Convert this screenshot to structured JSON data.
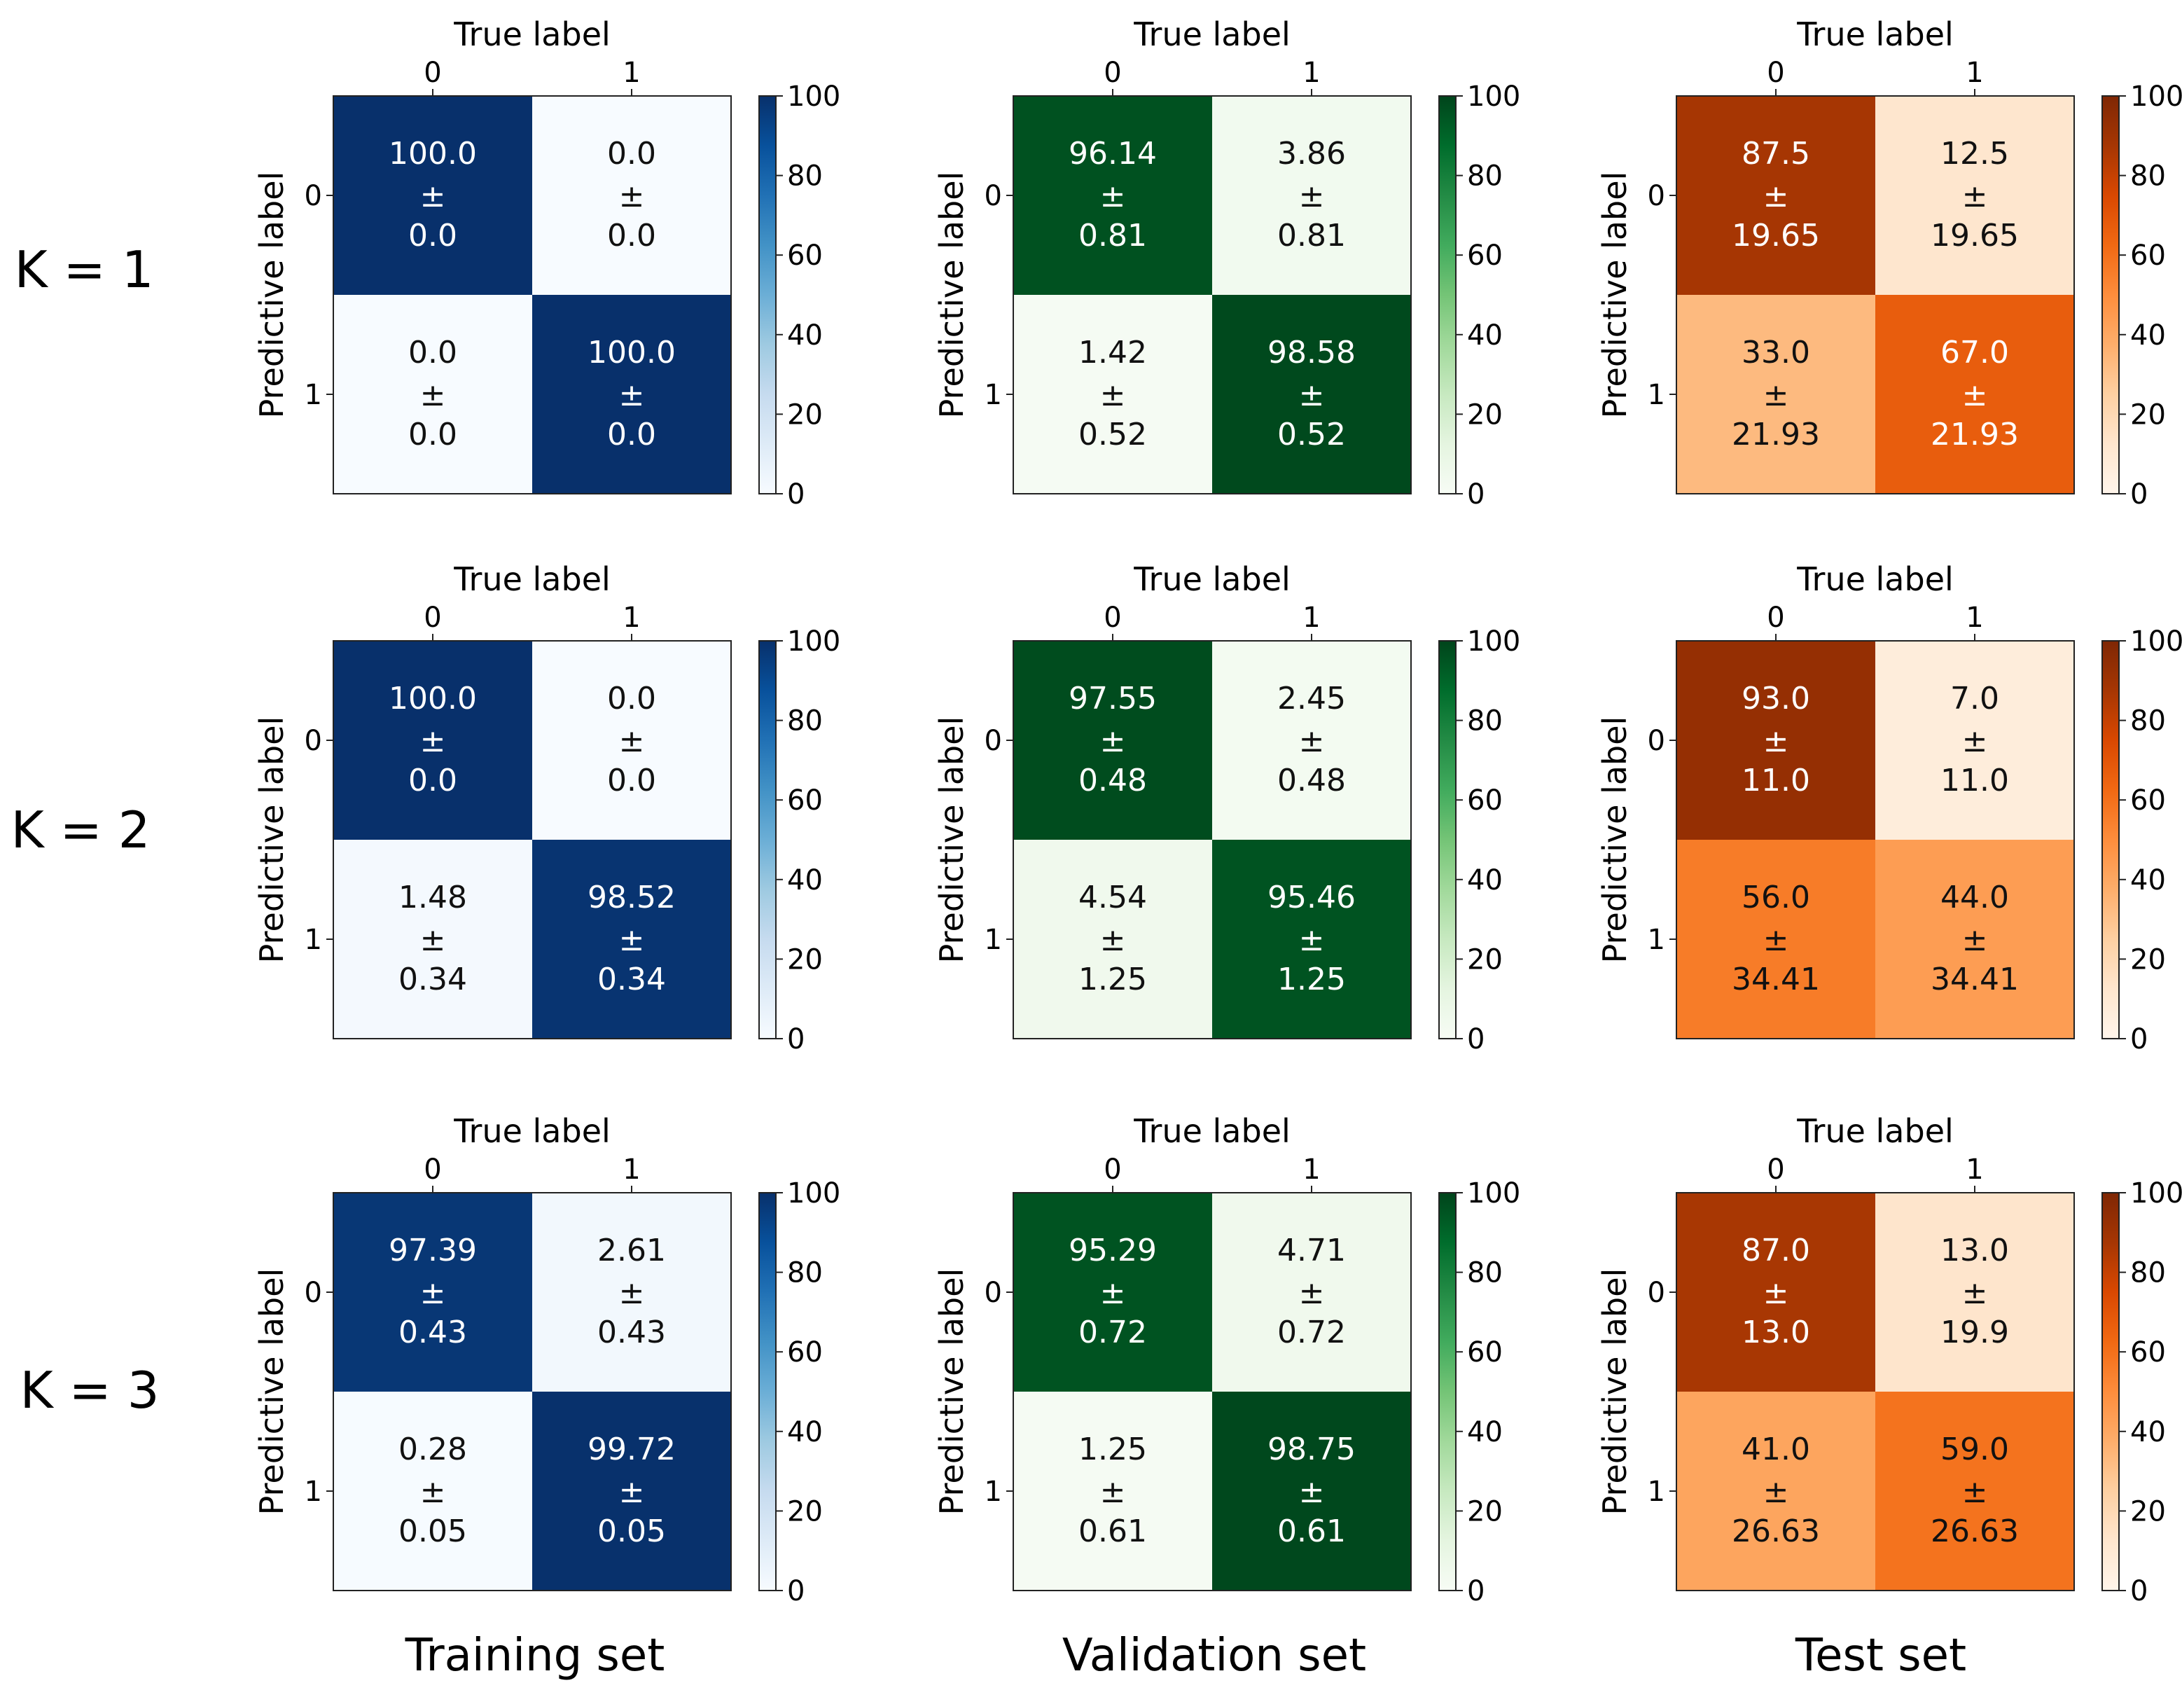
{
  "figure": {
    "row_labels": [
      "K = 1",
      "K = 2",
      "K = 3"
    ],
    "column_labels": [
      "Training set",
      "Validation set",
      "Test set"
    ],
    "x_axis_title": "True label",
    "y_axis_title": "Predictive label",
    "pm_symbol": "±"
  },
  "palettes": {
    "Blues": [
      "#f7fbff",
      "#deebf7",
      "#c6dbef",
      "#9ecae1",
      "#6baed6",
      "#4292c6",
      "#2171b5",
      "#08519c",
      "#08306b"
    ],
    "Greens": [
      "#f7fcf5",
      "#e5f5e0",
      "#c7e9c0",
      "#a1d99b",
      "#74c476",
      "#41ab5d",
      "#238b45",
      "#006d2c",
      "#00441b"
    ],
    "Oranges": [
      "#fff5eb",
      "#fee6ce",
      "#fdd0a2",
      "#fdae6b",
      "#fd8d3c",
      "#f16913",
      "#d94801",
      "#a63603",
      "#7f2704"
    ]
  },
  "chart_data": [
    {
      "type": "heatmap",
      "row": "K = 1",
      "set": "Training set",
      "colormap": "Blues",
      "xlabel": "True label",
      "ylabel": "Predictive label",
      "x_ticks": [
        "0",
        "1"
      ],
      "y_ticks": [
        "0",
        "1"
      ],
      "vmin": 0,
      "vmax": 100,
      "colorbar_ticks": [
        "0",
        "20",
        "40",
        "60",
        "80",
        "100"
      ],
      "cells": [
        [
          {
            "mean": "100.0",
            "std": "0.0"
          },
          {
            "mean": "0.0",
            "std": "0.0"
          }
        ],
        [
          {
            "mean": "0.0",
            "std": "0.0"
          },
          {
            "mean": "100.0",
            "std": "0.0"
          }
        ]
      ]
    },
    {
      "type": "heatmap",
      "row": "K = 1",
      "set": "Validation set",
      "colormap": "Greens",
      "xlabel": "True label",
      "ylabel": "Predictive label",
      "x_ticks": [
        "0",
        "1"
      ],
      "y_ticks": [
        "0",
        "1"
      ],
      "vmin": 0,
      "vmax": 100,
      "colorbar_ticks": [
        "0",
        "20",
        "40",
        "60",
        "80",
        "100"
      ],
      "cells": [
        [
          {
            "mean": "96.14",
            "std": "0.81"
          },
          {
            "mean": "3.86",
            "std": "0.81"
          }
        ],
        [
          {
            "mean": "1.42",
            "std": "0.52"
          },
          {
            "mean": "98.58",
            "std": "0.52"
          }
        ]
      ]
    },
    {
      "type": "heatmap",
      "row": "K = 1",
      "set": "Test set",
      "colormap": "Oranges",
      "xlabel": "True label",
      "ylabel": "Predictive label",
      "x_ticks": [
        "0",
        "1"
      ],
      "y_ticks": [
        "0",
        "1"
      ],
      "vmin": 0,
      "vmax": 100,
      "colorbar_ticks": [
        "0",
        "20",
        "40",
        "60",
        "80",
        "100"
      ],
      "cells": [
        [
          {
            "mean": "87.5",
            "std": "19.65"
          },
          {
            "mean": "12.5",
            "std": "19.65"
          }
        ],
        [
          {
            "mean": "33.0",
            "std": "21.93"
          },
          {
            "mean": "67.0",
            "std": "21.93"
          }
        ]
      ]
    },
    {
      "type": "heatmap",
      "row": "K = 2",
      "set": "Training set",
      "colormap": "Blues",
      "xlabel": "True label",
      "ylabel": "Predictive label",
      "x_ticks": [
        "0",
        "1"
      ],
      "y_ticks": [
        "0",
        "1"
      ],
      "vmin": 0,
      "vmax": 100,
      "colorbar_ticks": [
        "0",
        "20",
        "40",
        "60",
        "80",
        "100"
      ],
      "cells": [
        [
          {
            "mean": "100.0",
            "std": "0.0"
          },
          {
            "mean": "0.0",
            "std": "0.0"
          }
        ],
        [
          {
            "mean": "1.48",
            "std": "0.34"
          },
          {
            "mean": "98.52",
            "std": "0.34"
          }
        ]
      ]
    },
    {
      "type": "heatmap",
      "row": "K = 2",
      "set": "Validation set",
      "colormap": "Greens",
      "xlabel": "True label",
      "ylabel": "Predictive label",
      "x_ticks": [
        "0",
        "1"
      ],
      "y_ticks": [
        "0",
        "1"
      ],
      "vmin": 0,
      "vmax": 100,
      "colorbar_ticks": [
        "0",
        "20",
        "40",
        "60",
        "80",
        "100"
      ],
      "cells": [
        [
          {
            "mean": "97.55",
            "std": "0.48"
          },
          {
            "mean": "2.45",
            "std": "0.48"
          }
        ],
        [
          {
            "mean": "4.54",
            "std": "1.25"
          },
          {
            "mean": "95.46",
            "std": "1.25"
          }
        ]
      ]
    },
    {
      "type": "heatmap",
      "row": "K = 2",
      "set": "Test set",
      "colormap": "Oranges",
      "xlabel": "True label",
      "ylabel": "Predictive label",
      "x_ticks": [
        "0",
        "1"
      ],
      "y_ticks": [
        "0",
        "1"
      ],
      "vmin": 0,
      "vmax": 100,
      "colorbar_ticks": [
        "0",
        "20",
        "40",
        "60",
        "80",
        "100"
      ],
      "cells": [
        [
          {
            "mean": "93.0",
            "std": "11.0"
          },
          {
            "mean": "7.0",
            "std": "11.0"
          }
        ],
        [
          {
            "mean": "56.0",
            "std": "34.41"
          },
          {
            "mean": "44.0",
            "std": "34.41"
          }
        ]
      ]
    },
    {
      "type": "heatmap",
      "row": "K = 3",
      "set": "Training set",
      "colormap": "Blues",
      "xlabel": "True label",
      "ylabel": "Predictive label",
      "x_ticks": [
        "0",
        "1"
      ],
      "y_ticks": [
        "0",
        "1"
      ],
      "vmin": 0,
      "vmax": 100,
      "colorbar_ticks": [
        "0",
        "20",
        "40",
        "60",
        "80",
        "100"
      ],
      "cells": [
        [
          {
            "mean": "97.39",
            "std": "0.43"
          },
          {
            "mean": "2.61",
            "std": "0.43"
          }
        ],
        [
          {
            "mean": "0.28",
            "std": "0.05"
          },
          {
            "mean": "99.72",
            "std": "0.05"
          }
        ]
      ]
    },
    {
      "type": "heatmap",
      "row": "K = 3",
      "set": "Validation set",
      "colormap": "Greens",
      "xlabel": "True label",
      "ylabel": "Predictive label",
      "x_ticks": [
        "0",
        "1"
      ],
      "y_ticks": [
        "0",
        "1"
      ],
      "vmin": 0,
      "vmax": 100,
      "colorbar_ticks": [
        "0",
        "20",
        "40",
        "60",
        "80",
        "100"
      ],
      "cells": [
        [
          {
            "mean": "95.29",
            "std": "0.72"
          },
          {
            "mean": "4.71",
            "std": "0.72"
          }
        ],
        [
          {
            "mean": "1.25",
            "std": "0.61"
          },
          {
            "mean": "98.75",
            "std": "0.61"
          }
        ]
      ]
    },
    {
      "type": "heatmap",
      "row": "K = 3",
      "set": "Test set",
      "colormap": "Oranges",
      "xlabel": "True label",
      "ylabel": "Predictive label",
      "x_ticks": [
        "0",
        "1"
      ],
      "y_ticks": [
        "0",
        "1"
      ],
      "vmin": 0,
      "vmax": 100,
      "colorbar_ticks": [
        "0",
        "20",
        "40",
        "60",
        "80",
        "100"
      ],
      "cells": [
        [
          {
            "mean": "87.0",
            "std": "13.0"
          },
          {
            "mean": "13.0",
            "std": "19.9"
          }
        ],
        [
          {
            "mean": "41.0",
            "std": "26.63"
          },
          {
            "mean": "59.0",
            "std": "26.63"
          }
        ]
      ]
    }
  ]
}
